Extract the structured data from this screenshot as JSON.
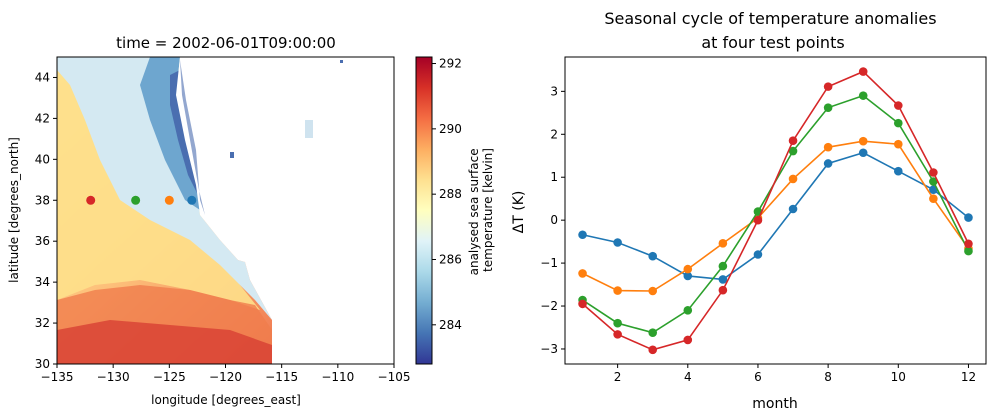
{
  "chart_data": [
    {
      "type": "heatmap",
      "title": "time = 2002-06-01T09:00:00",
      "xlabel": "longitude [degrees_east]",
      "ylabel": "latitude [degrees_north]",
      "xlim": [
        -135,
        -105
      ],
      "ylim": [
        30,
        45
      ],
      "x_ticks": [
        -135,
        -130,
        -125,
        -120,
        -115,
        -110,
        -105
      ],
      "y_ticks": [
        30,
        32,
        34,
        36,
        38,
        40,
        42,
        44
      ],
      "x_tick_labels": [
        "−135",
        "−130",
        "−125",
        "−120",
        "−115",
        "−110",
        "−105"
      ],
      "y_tick_labels": [
        "30",
        "32",
        "34",
        "36",
        "38",
        "40",
        "42",
        "44"
      ],
      "colorbar": {
        "label_lines": [
          "analysed sea surface",
          "temperature [kelvin]"
        ],
        "range": [
          282.8,
          292.2
        ],
        "ticks": [
          284,
          286,
          288,
          290,
          292
        ],
        "tick_labels": [
          "284",
          "286",
          "288",
          "290",
          "292"
        ],
        "colormap": "RdYlBu_r"
      },
      "points": [
        {
          "lon": -132,
          "lat": 38,
          "color": "#d62728"
        },
        {
          "lon": -128,
          "lat": 38,
          "color": "#2ca02c"
        },
        {
          "lon": -125,
          "lat": 38,
          "color": "#ff7f0e"
        },
        {
          "lon": -123,
          "lat": 38,
          "color": "#1f77b4"
        }
      ]
    },
    {
      "type": "line",
      "title_lines": [
        "Seasonal cycle of temperature anomalies",
        "at four test points"
      ],
      "xlabel": "month",
      "ylabel": "ΔT (K)",
      "xlim": [
        0.5,
        12.5
      ],
      "ylim": [
        -3.35,
        3.8
      ],
      "x_ticks": [
        2,
        4,
        6,
        8,
        10,
        12
      ],
      "y_ticks": [
        -3,
        -2,
        -1,
        0,
        1,
        2,
        3
      ],
      "x_tick_labels": [
        "2",
        "4",
        "6",
        "8",
        "10",
        "12"
      ],
      "y_tick_labels": [
        "−3",
        "−2",
        "−1",
        "0",
        "1",
        "2",
        "3"
      ],
      "x": [
        1,
        2,
        3,
        4,
        5,
        6,
        7,
        8,
        9,
        10,
        11,
        12
      ],
      "series": [
        {
          "color": "#1f77b4",
          "values": [
            -0.34,
            -0.52,
            -0.84,
            -1.3,
            -1.38,
            -0.8,
            0.26,
            1.32,
            1.57,
            1.14,
            0.71,
            0.06
          ]
        },
        {
          "color": "#ff7f0e",
          "values": [
            -1.24,
            -1.64,
            -1.65,
            -1.14,
            -0.54,
            0.05,
            0.96,
            1.7,
            1.84,
            1.77,
            0.5,
            -0.66
          ]
        },
        {
          "color": "#2ca02c",
          "values": [
            -1.86,
            -2.4,
            -2.62,
            -2.1,
            -1.07,
            0.2,
            1.61,
            2.62,
            2.9,
            2.26,
            0.9,
            -0.72
          ]
        },
        {
          "color": "#d62728",
          "values": [
            -1.95,
            -2.66,
            -3.02,
            -2.79,
            -1.63,
            0.0,
            1.85,
            3.11,
            3.46,
            2.67,
            1.11,
            -0.55
          ]
        }
      ]
    }
  ]
}
